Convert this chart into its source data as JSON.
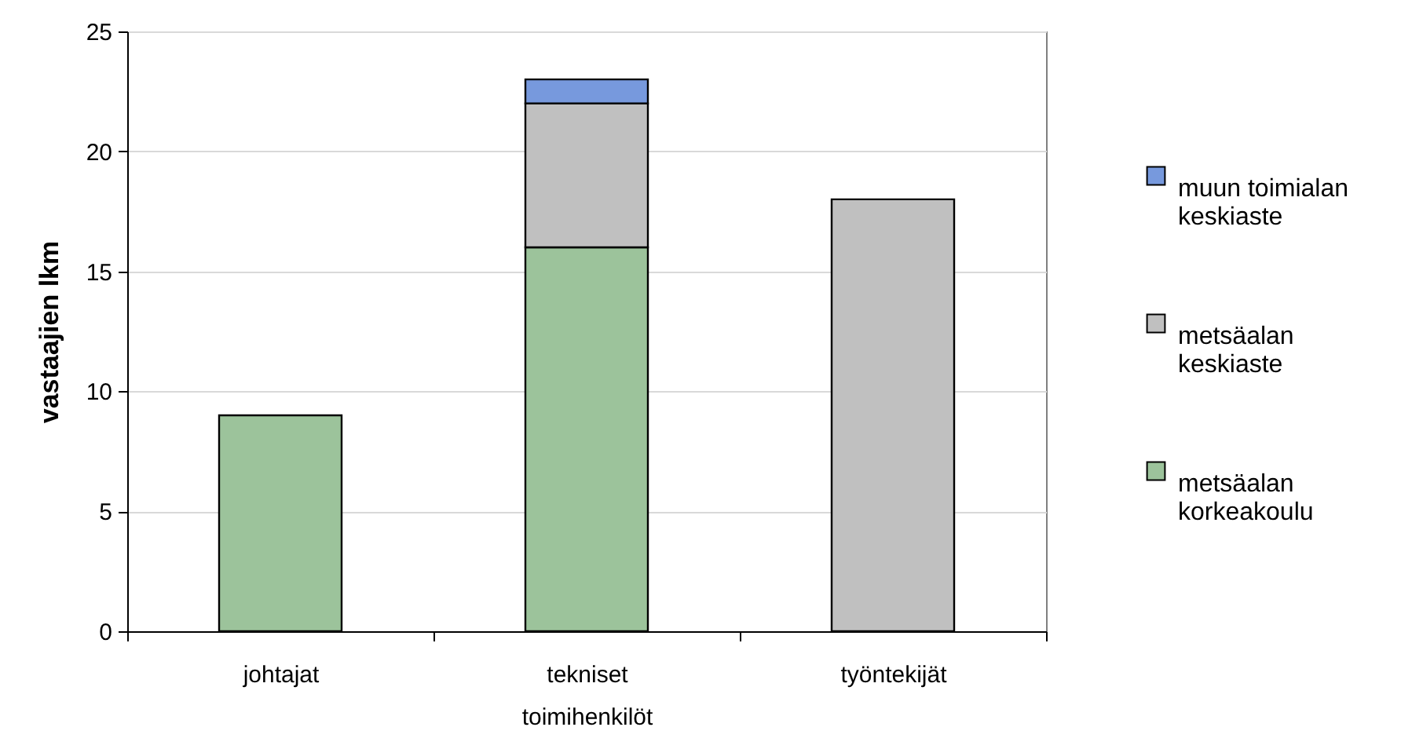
{
  "chart_data": {
    "type": "bar",
    "stacked": true,
    "categories": [
      "johtajat",
      "tekniset toimihenkilöt",
      "työntekijät"
    ],
    "series": [
      {
        "name": "metsäalan korkeakoulu",
        "color": "#9cc39b",
        "values": [
          9,
          16,
          null
        ]
      },
      {
        "name": "metsäalan keskiaste",
        "color": "#c0c0c0",
        "values": [
          null,
          6,
          18
        ]
      },
      {
        "name": "muun toimialan keskiaste",
        "color": "#7799dd",
        "values": [
          null,
          1,
          null
        ]
      }
    ],
    "ylabel": "vastaajien lkm",
    "ylim": [
      0,
      25
    ],
    "yticks": [
      0,
      5,
      10,
      15,
      20,
      25
    ],
    "grid": "y",
    "legend": "right"
  }
}
